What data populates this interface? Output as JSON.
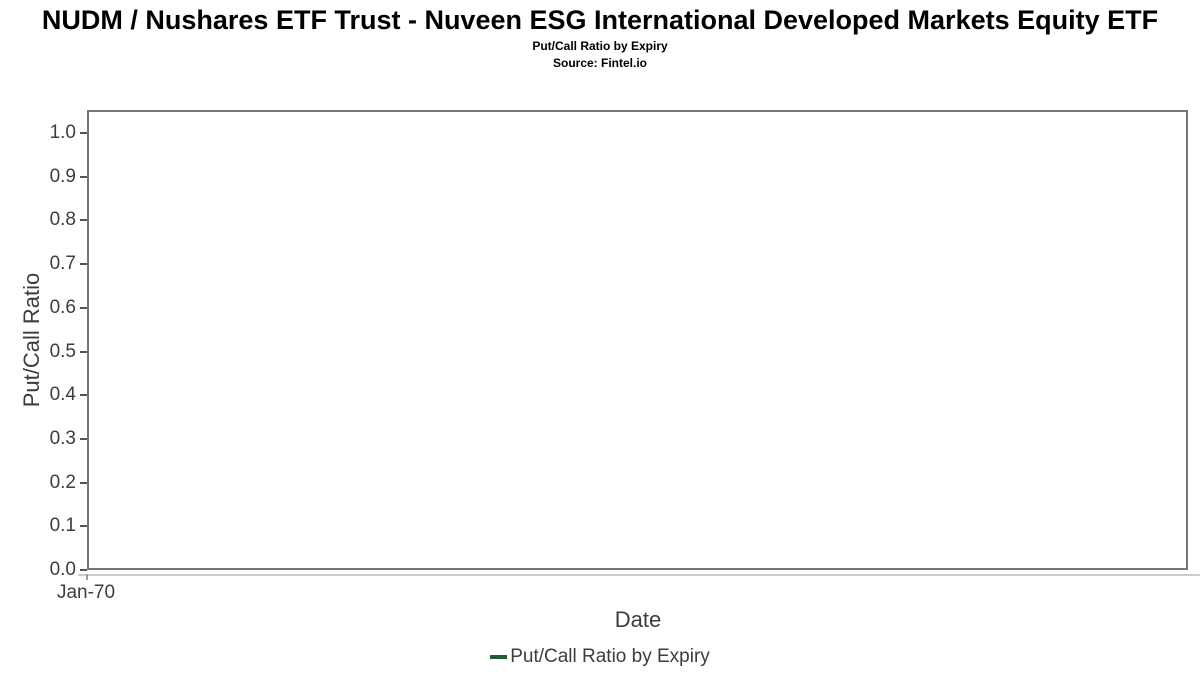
{
  "header": {
    "title": "NUDM / Nushares ETF Trust - Nuveen ESG International Developed Markets Equity ETF",
    "subtitle": "Put/Call Ratio by Expiry",
    "source": "Source: Fintel.io"
  },
  "chart_data": {
    "type": "line",
    "title": "Put/Call Ratio by Expiry",
    "subtitle": "Source: Fintel.io",
    "xlabel": "Date",
    "ylabel": "Put/Call Ratio",
    "x_tick_labels": [
      "Jan-70"
    ],
    "y_ticks": [
      0.0,
      0.1,
      0.2,
      0.3,
      0.4,
      0.5,
      0.6,
      0.7,
      0.8,
      0.9,
      1.0
    ],
    "ylim": [
      0.0,
      1.05
    ],
    "grid": "horizontal",
    "legend_position": "bottom-center",
    "series": [
      {
        "name": "Put/Call Ratio by Expiry",
        "color": "#235d36",
        "x": [],
        "values": []
      }
    ]
  },
  "legend": {
    "items": [
      {
        "label": "Put/Call Ratio by Expiry",
        "marker": "line",
        "color": "#235d36"
      }
    ]
  }
}
